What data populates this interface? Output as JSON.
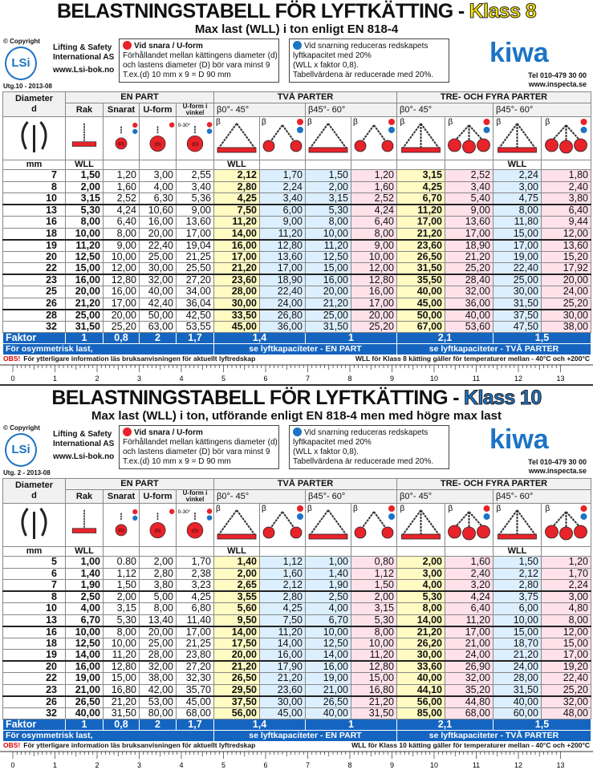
{
  "panels": [
    {
      "title": "BELASTNINGSTABELL FÖR LYFTKÄTTING -",
      "klass": "Klass 8",
      "subtitle": "Max last (WLL) i ton enligt EN 818-4",
      "copyright": "© Copyright",
      "logo": "LSi",
      "company": [
        "Lifting & Safety",
        "International AS"
      ],
      "website": "www.Lsi-bok.no",
      "edition": "Utg.10 - 2013-08",
      "note_snara": [
        "Vid snara / U-form",
        "Förhållandet mellan kättingens diameter (d)",
        "och lastens diameter (D) bör vara minst 9",
        "T.ex.(d) 10 mm x 9 = D 90 mm"
      ],
      "note_snarning": [
        "Vid snarning reduceras redskapets",
        "lyftkapacitet med 20%",
        "(WLL x faktor 0,8).",
        "Tabellvärdena är reducerade med 20%."
      ],
      "brand": "kiwa",
      "phone": "Tel 010-479 30 00",
      "web2": "www.inspecta.se",
      "table": {
        "diameter": "Diameter",
        "d": "d",
        "groups": [
          "EN PART",
          "TVÅ PARTER",
          "TRE- OCH FYRA PARTER"
        ],
        "en_part": [
          "Rak",
          "Snarat",
          "U-form",
          "U-form i vinkel"
        ],
        "angles": [
          "β0°- 45°",
          "β45°- 60°",
          "β0°- 45°",
          "β45°- 60°"
        ],
        "icon_D": "(D)",
        "icon_angle": "0-30°",
        "beta": "β",
        "unit": "mm",
        "wll": "WLL",
        "rows": [
          [
            "7",
            "1,50",
            "1,20",
            "3,00",
            "2,55",
            "2,12",
            "1,70",
            "1,50",
            "1,20",
            "3,15",
            "2,52",
            "2,24",
            "1,80"
          ],
          [
            "8",
            "2,00",
            "1,60",
            "4,00",
            "3,40",
            "2,80",
            "2,24",
            "2,00",
            "1,60",
            "4,25",
            "3,40",
            "3,00",
            "2,40"
          ],
          [
            "10",
            "3,15",
            "2,52",
            "6,30",
            "5,36",
            "4,25",
            "3,40",
            "3,15",
            "2,52",
            "6,70",
            "5,40",
            "4,75",
            "3,80"
          ],
          [
            "13",
            "5,30",
            "4,24",
            "10,60",
            "9,00",
            "7,50",
            "6,00",
            "5,30",
            "4,24",
            "11,20",
            "9,00",
            "8,00",
            "6,40"
          ],
          [
            "16",
            "8,00",
            "6,40",
            "16,00",
            "13,60",
            "11,20",
            "9,00",
            "8,00",
            "6,40",
            "17,00",
            "13,60",
            "11,80",
            "9,44"
          ],
          [
            "18",
            "10,00",
            "8,00",
            "20,00",
            "17,00",
            "14,00",
            "11,20",
            "10,00",
            "8,00",
            "21,20",
            "17,00",
            "15,00",
            "12,00"
          ],
          [
            "19",
            "11,20",
            "9,00",
            "22,40",
            "19,04",
            "16,00",
            "12,80",
            "11,20",
            "9,00",
            "23,60",
            "18,90",
            "17,00",
            "13,60"
          ],
          [
            "20",
            "12,50",
            "10,00",
            "25,00",
            "21,25",
            "17,00",
            "13,60",
            "12,50",
            "10,00",
            "26,50",
            "21,20",
            "19,00",
            "15,20"
          ],
          [
            "22",
            "15,00",
            "12,00",
            "30,00",
            "25,50",
            "21,20",
            "17,00",
            "15,00",
            "12,00",
            "31,50",
            "25,20",
            "22,40",
            "17,92"
          ],
          [
            "23",
            "16,00",
            "12,80",
            "32,00",
            "27,20",
            "23,60",
            "18,90",
            "16,00",
            "12,80",
            "35,50",
            "28,40",
            "25,00",
            "20,00"
          ],
          [
            "25",
            "20,00",
            "16,00",
            "40,00",
            "34,00",
            "28,00",
            "22,40",
            "20,00",
            "16,00",
            "40,00",
            "32,00",
            "30,00",
            "24,00"
          ],
          [
            "26",
            "21,20",
            "17,00",
            "42,40",
            "36,04",
            "30,00",
            "24,00",
            "21,20",
            "17,00",
            "45,00",
            "36,00",
            "31,50",
            "25,20"
          ],
          [
            "28",
            "25,00",
            "20,00",
            "50,00",
            "42,50",
            "33,50",
            "26,80",
            "25,00",
            "20,00",
            "50,00",
            "40,00",
            "37,50",
            "30,00"
          ],
          [
            "32",
            "31,50",
            "25,20",
            "63,00",
            "53,55",
            "45,00",
            "36,00",
            "31,50",
            "25,20",
            "67,00",
            "53,60",
            "47,50",
            "38,00"
          ]
        ],
        "faktor_label": "Faktor",
        "faktor": [
          "1",
          "0,8",
          "2",
          "1,7",
          "1,4",
          "1",
          "2,1",
          "1,5"
        ],
        "osym": [
          "För osymmetrisk last,",
          "se lyftkapaciteter - EN PART",
          "se lyftkapaciteter - TVÅ PARTER"
        ]
      },
      "obs": "OBS!",
      "obs_text": "För ytterligare information läs bruksanvisningen för aktuellt lyftredskap",
      "temp": "WLL för Klass 8 kätting gäller för temperaturer mellan - 40°C och +200°C",
      "ruler": [
        "0",
        "1",
        "2",
        "3",
        "4",
        "5",
        "6",
        "7",
        "8",
        "9",
        "10",
        "11",
        "12",
        "13"
      ]
    },
    {
      "title": "BELASTNINGSTABELL FÖR LYFTKÄTTING -",
      "klass": "Klass 10",
      "subtitle": "Max last (WLL) i ton, utförande enligt EN 818-4 men med högre max last",
      "copyright": "© Copyright",
      "logo": "LSi",
      "company": [
        "Lifting & Safety",
        "International AS"
      ],
      "website": "www.Lsi-bok.no",
      "edition": "Utg. 2 - 2013-08",
      "note_snara": [
        "Vid snara / U-form",
        "Förhållandet mellan kättingens diameter (d)",
        "och lastens diameter (D) bör vara minst 9",
        "T.ex.(d) 10 mm x 9 = D 90 mm"
      ],
      "note_snarning": [
        "Vid snarning reduceras redskapets",
        "lyftkapacitet med 20%",
        "(WLL x faktor 0,8).",
        "Tabellvärdena är reducerade med 20%."
      ],
      "brand": "kiwa",
      "phone": "Tel 010-479 30 00",
      "web2": "www.inspecta.se",
      "table": {
        "diameter": "Diameter",
        "d": "d",
        "groups": [
          "EN PART",
          "TVÅ PARTER",
          "TRE- OCH FYRA PARTER"
        ],
        "en_part": [
          "Rak",
          "Snarat",
          "U-form",
          "U-form i vinkel"
        ],
        "angles": [
          "β0°- 45°",
          "β45°- 60°",
          "β0°- 45°",
          "β45°- 60°"
        ],
        "icon_D": "(D)",
        "icon_angle": "0-30°",
        "beta": "β",
        "unit": "mm",
        "wll": "WLL",
        "rows": [
          [
            "5",
            "1,00",
            "0.80",
            "2,00",
            "1,70",
            "1,40",
            "1,12",
            "1,00",
            "0,80",
            "2,00",
            "1,60",
            "1,50",
            "1,20"
          ],
          [
            "6",
            "1,40",
            "1,12",
            "2,80",
            "2,38",
            "2,00",
            "1,60",
            "1,40",
            "1,12",
            "3,00",
            "2,40",
            "2,12",
            "1,70"
          ],
          [
            "7",
            "1,90",
            "1,50",
            "3,80",
            "3,23",
            "2,65",
            "2,12",
            "1,90",
            "1,50",
            "4,00",
            "3,20",
            "2,80",
            "2,24"
          ],
          [
            "8",
            "2,50",
            "2,00",
            "5,00",
            "4,25",
            "3,55",
            "2,80",
            "2,50",
            "2,00",
            "5,30",
            "4,24",
            "3,75",
            "3,00"
          ],
          [
            "10",
            "4,00",
            "3,15",
            "8,00",
            "6,80",
            "5,60",
            "4,25",
            "4,00",
            "3,15",
            "8,00",
            "6,40",
            "6,00",
            "4,80"
          ],
          [
            "13",
            "6,70",
            "5,30",
            "13,40",
            "11,40",
            "9,50",
            "7,50",
            "6,70",
            "5,30",
            "14,00",
            "11,20",
            "10,00",
            "8,00"
          ],
          [
            "16",
            "10,00",
            "8,00",
            "20,00",
            "17,00",
            "14,00",
            "11,20",
            "10,00",
            "8,00",
            "21,20",
            "17,00",
            "15,00",
            "12,00"
          ],
          [
            "18",
            "12,50",
            "10,00",
            "25,00",
            "21,25",
            "17,50",
            "14,00",
            "12,50",
            "10,00",
            "26,20",
            "21,00",
            "18,70",
            "15,00"
          ],
          [
            "19",
            "14,00",
            "11,20",
            "28,00",
            "23,80",
            "20,00",
            "16,00",
            "14,00",
            "11,20",
            "30,00",
            "24,00",
            "21,20",
            "17,00"
          ],
          [
            "20",
            "16,00",
            "12,80",
            "32,00",
            "27,20",
            "21,20",
            "17,90",
            "16,00",
            "12,80",
            "33,60",
            "26,90",
            "24,00",
            "19,20"
          ],
          [
            "22",
            "19,00",
            "15,00",
            "38,00",
            "32,30",
            "26,50",
            "21,20",
            "19,00",
            "15,00",
            "40,00",
            "32,00",
            "28,00",
            "22,40"
          ],
          [
            "23",
            "21,00",
            "16,80",
            "42,00",
            "35,70",
            "29,50",
            "23,60",
            "21,00",
            "16,80",
            "44,10",
            "35,20",
            "31,50",
            "25,20"
          ],
          [
            "26",
            "26,50",
            "21,20",
            "53,00",
            "45,00",
            "37,50",
            "30,00",
            "26,50",
            "21,20",
            "56,00",
            "44,80",
            "40,00",
            "32,00"
          ],
          [
            "32",
            "40,00",
            "31,50",
            "80,00",
            "68,00",
            "56,00",
            "45,00",
            "40,00",
            "31,50",
            "85,00",
            "68,00",
            "60,00",
            "48,00"
          ]
        ],
        "faktor_label": "Faktor",
        "faktor": [
          "1",
          "0,8",
          "2",
          "1,7",
          "1,4",
          "1",
          "2,1",
          "1,5"
        ],
        "osym": [
          "För osymmetrisk last,",
          "se lyftkapaciteter - EN PART",
          "se lyftkapaciteter - TVÅ PARTER"
        ]
      },
      "obs": "OBS!",
      "obs_text": "För ytterligare information läs bruksanvisningen för aktuellt lyftredskap",
      "temp": "WLL för Klass 10 kätting gäller för temperaturer mellan - 40°C och +200°C",
      "ruler": [
        "0",
        "1",
        "2",
        "3",
        "4",
        "5",
        "6",
        "7",
        "8",
        "9",
        "10",
        "11",
        "12",
        "13"
      ]
    }
  ]
}
